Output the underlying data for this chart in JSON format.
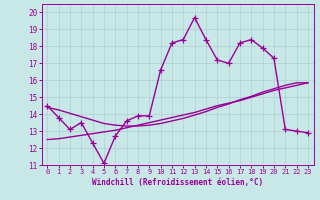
{
  "title": "",
  "xlabel": "Windchill (Refroidissement éolien,°C)",
  "ylabel": "",
  "xlim": [
    -0.5,
    23.5
  ],
  "ylim": [
    11,
    20.5
  ],
  "yticks": [
    11,
    12,
    13,
    14,
    15,
    16,
    17,
    18,
    19,
    20
  ],
  "xticks": [
    0,
    1,
    2,
    3,
    4,
    5,
    6,
    7,
    8,
    9,
    10,
    11,
    12,
    13,
    14,
    15,
    16,
    17,
    18,
    19,
    20,
    21,
    22,
    23
  ],
  "bg_color": "#c8e8e8",
  "grid_color": "#b0d0d0",
  "line_color": "#990099",
  "line_width": 1.0,
  "marker": "+",
  "marker_size": 4,
  "data_y": [
    14.5,
    13.8,
    13.1,
    13.5,
    12.3,
    11.1,
    12.7,
    13.6,
    13.9,
    13.9,
    16.6,
    18.2,
    18.4,
    19.7,
    18.4,
    17.2,
    17.0,
    18.2,
    18.4,
    17.9,
    17.3,
    13.1,
    13.0,
    12.9
  ],
  "smooth_y1": [
    12.5,
    12.55,
    12.65,
    12.75,
    12.85,
    12.95,
    13.05,
    13.2,
    13.35,
    13.5,
    13.65,
    13.8,
    13.95,
    14.1,
    14.3,
    14.5,
    14.65,
    14.8,
    15.0,
    15.2,
    15.4,
    15.55,
    15.7,
    15.85
  ],
  "smooth_y2": [
    14.4,
    14.25,
    14.05,
    13.85,
    13.65,
    13.45,
    13.35,
    13.3,
    13.3,
    13.35,
    13.45,
    13.6,
    13.75,
    13.95,
    14.15,
    14.4,
    14.6,
    14.85,
    15.05,
    15.3,
    15.5,
    15.7,
    15.85,
    15.85
  ]
}
